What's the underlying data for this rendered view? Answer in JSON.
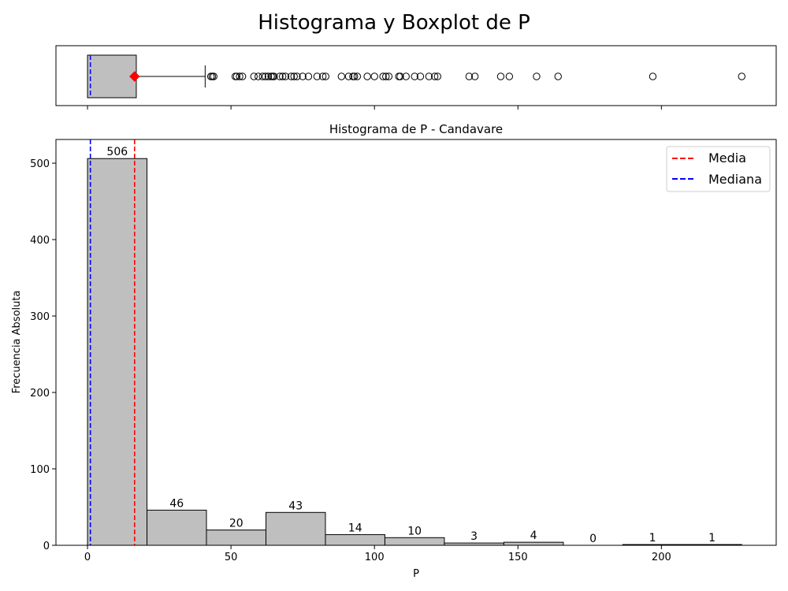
{
  "suptitle": "Histograma y Boxplot de P",
  "colors": {
    "bar_fill": "#bfbfbf",
    "edge": "#000000",
    "mean": "#ff0000",
    "median": "#0000ff"
  },
  "chart_data": [
    {
      "type": "boxplot",
      "name": "boxplot",
      "xlim": [
        -11,
        240
      ],
      "whisker_low": 0,
      "q1": 0,
      "median": 1,
      "q3": 17,
      "whisker_high": 41,
      "mean": 16.4,
      "outliers": [
        43,
        43.5,
        44,
        51.5,
        52,
        53,
        54,
        58,
        59.5,
        61,
        62,
        63,
        64,
        64.5,
        65,
        67,
        68,
        69,
        71,
        72,
        73,
        75,
        77,
        80,
        82,
        83,
        88.5,
        91,
        92.5,
        93,
        94,
        97.5,
        100,
        103,
        104,
        105,
        108.5,
        109,
        111,
        114,
        116,
        119,
        121,
        122,
        133,
        135,
        144,
        147,
        156.5,
        164,
        197,
        228
      ]
    },
    {
      "type": "bar",
      "name": "histogram",
      "title": "Histograma de P - Candavare",
      "xlabel": "P",
      "ylabel": "Frecuencia Absoluta",
      "xlim": [
        -11,
        240
      ],
      "ylim": [
        0,
        531
      ],
      "bin_edges": [
        0,
        20.73,
        41.45,
        62.18,
        82.91,
        103.64,
        124.36,
        145.09,
        165.82,
        186.55,
        207.27,
        228
      ],
      "values": [
        506,
        46,
        20,
        43,
        14,
        10,
        3,
        4,
        0,
        1,
        1
      ],
      "labels": [
        "506",
        "46",
        "20",
        "43",
        "14",
        "10",
        "3",
        "4",
        "0",
        "1",
        "1"
      ],
      "mean": 16.4,
      "median": 1,
      "xticks": [
        0,
        50,
        100,
        150,
        200
      ],
      "xtick_labels": [
        "0",
        "50",
        "100",
        "150",
        "200"
      ],
      "yticks": [
        0,
        100,
        200,
        300,
        400,
        500
      ],
      "ytick_labels": [
        "0",
        "100",
        "200",
        "300",
        "400",
        "500"
      ],
      "legend": {
        "position": "top-right",
        "entries": [
          {
            "label": "Media",
            "color": "#ff0000"
          },
          {
            "label": "Mediana",
            "color": "#0000ff"
          }
        ]
      }
    }
  ]
}
